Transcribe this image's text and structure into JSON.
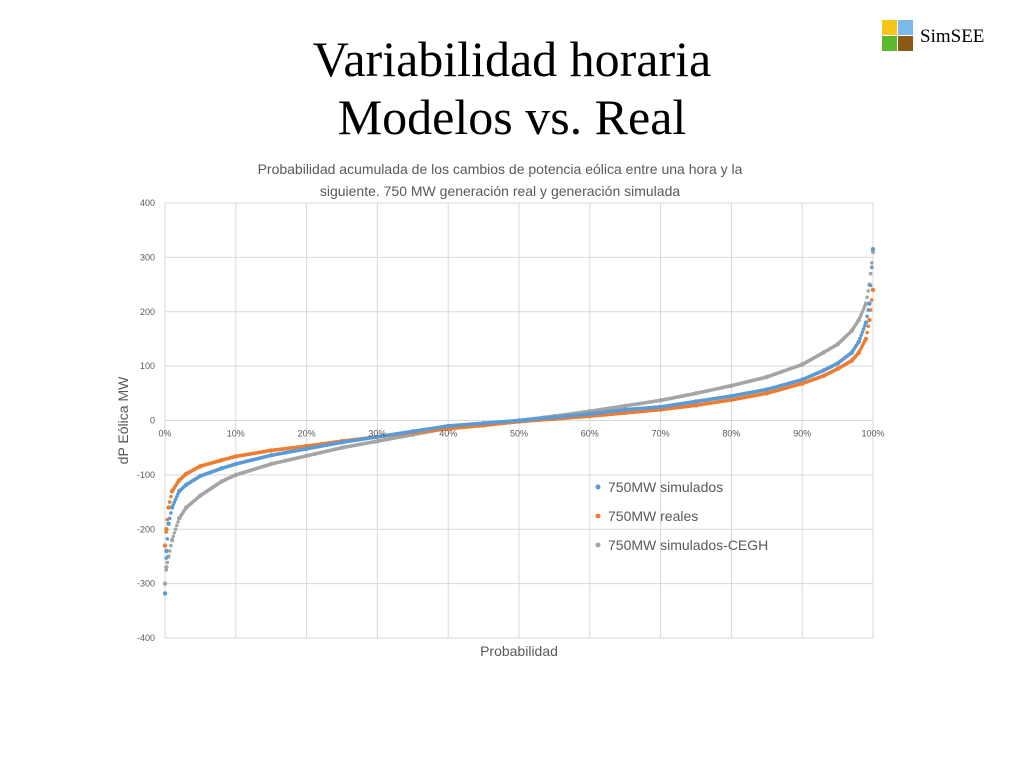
{
  "slide": {
    "title_line1": "Variabilidad horaria",
    "title_line2": "Modelos vs. Real",
    "logo_text": "SimSEE",
    "logo_colors": [
      "#f5c518",
      "#7bb9e8",
      "#5cb82c",
      "#8a5a14"
    ]
  },
  "chart_data": {
    "type": "scatter",
    "title_line1": "Probabilidad acumulada de los cambios de potencia eólica entre una hora y la",
    "title_line2": "siguiente. 750 MW generación real y generación simulada",
    "xlabel": "Probabilidad",
    "ylabel": "dP Eólica MW",
    "xlim": [
      0,
      1
    ],
    "ylim": [
      -400,
      400
    ],
    "x_ticks": [
      0,
      0.1,
      0.2,
      0.3,
      0.4,
      0.5,
      0.6,
      0.7,
      0.8,
      0.9,
      1.0
    ],
    "x_tick_labels": [
      "0%",
      "10%",
      "20%",
      "30%",
      "40%",
      "50%",
      "60%",
      "70%",
      "80%",
      "90%",
      "100%"
    ],
    "y_ticks": [
      400,
      300,
      200,
      100,
      0,
      -100,
      -200,
      -300,
      -400
    ],
    "y_tick_labels": [
      "400",
      "300",
      "200",
      "100",
      "0",
      "-100",
      "-200",
      "-300",
      "-400"
    ],
    "grid": true,
    "legend_position": "inside-bottom-right",
    "series": [
      {
        "name": "750MW simulados",
        "color": "#5b9bd5",
        "x": [
          0,
          0.002,
          0.005,
          0.01,
          0.02,
          0.03,
          0.05,
          0.08,
          0.1,
          0.15,
          0.2,
          0.25,
          0.3,
          0.35,
          0.4,
          0.45,
          0.5,
          0.55,
          0.6,
          0.65,
          0.7,
          0.75,
          0.8,
          0.85,
          0.9,
          0.93,
          0.95,
          0.97,
          0.98,
          0.99,
          0.995,
          1.0
        ],
        "y": [
          -318,
          -240,
          -190,
          -160,
          -130,
          -118,
          -102,
          -88,
          -80,
          -64,
          -52,
          -40,
          -30,
          -20,
          -10,
          -5,
          0,
          6,
          12,
          20,
          25,
          35,
          45,
          57,
          75,
          92,
          105,
          125,
          145,
          180,
          215,
          315
        ]
      },
      {
        "name": "750MW reales",
        "color": "#ed7d31",
        "x": [
          0,
          0.002,
          0.005,
          0.01,
          0.02,
          0.03,
          0.05,
          0.08,
          0.1,
          0.15,
          0.2,
          0.25,
          0.3,
          0.35,
          0.4,
          0.45,
          0.5,
          0.55,
          0.6,
          0.65,
          0.7,
          0.75,
          0.8,
          0.85,
          0.9,
          0.93,
          0.95,
          0.97,
          0.98,
          0.99,
          0.995,
          1.0
        ],
        "y": [
          -230,
          -200,
          -160,
          -130,
          -110,
          -98,
          -84,
          -73,
          -66,
          -55,
          -47,
          -38,
          -30,
          -22,
          -15,
          -9,
          -2,
          3,
          8,
          14,
          20,
          28,
          38,
          50,
          68,
          82,
          95,
          110,
          125,
          150,
          185,
          240
        ]
      },
      {
        "name": "750MW simulados-CEGH",
        "color": "#a5a5a5",
        "x": [
          0,
          0.002,
          0.005,
          0.01,
          0.02,
          0.03,
          0.05,
          0.08,
          0.1,
          0.15,
          0.2,
          0.25,
          0.3,
          0.35,
          0.4,
          0.45,
          0.5,
          0.55,
          0.6,
          0.65,
          0.7,
          0.75,
          0.8,
          0.85,
          0.9,
          0.93,
          0.95,
          0.97,
          0.98,
          0.99,
          0.995,
          1.0
        ],
        "y": [
          -300,
          -270,
          -250,
          -220,
          -180,
          -160,
          -138,
          -112,
          -100,
          -80,
          -65,
          -50,
          -38,
          -26,
          -14,
          -7,
          0,
          8,
          17,
          27,
          37,
          50,
          64,
          80,
          103,
          125,
          140,
          165,
          185,
          215,
          250,
          310
        ]
      }
    ]
  }
}
